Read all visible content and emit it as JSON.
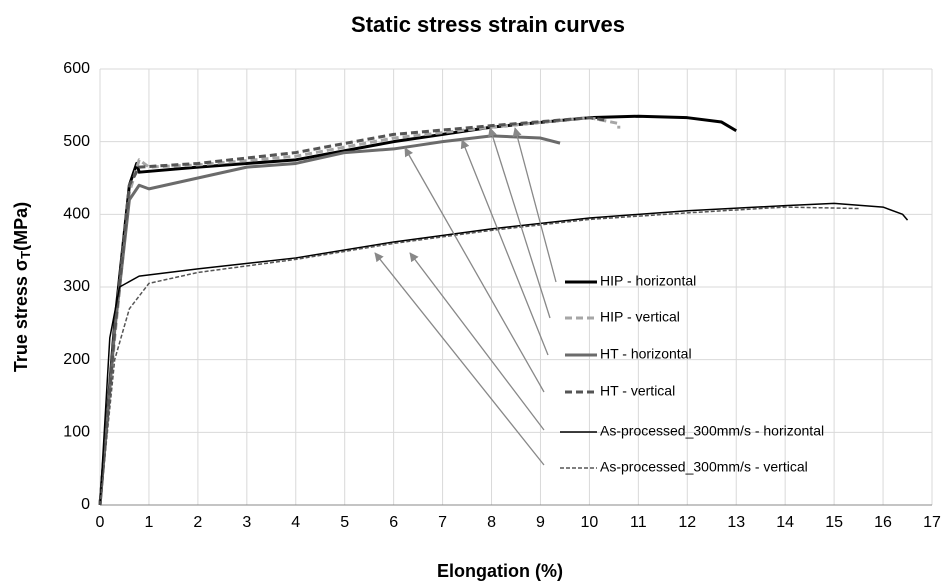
{
  "chart_data": {
    "type": "line",
    "title": "Static stress strain curves",
    "x_label": "Elongation (%)",
    "y_label": {
      "text": "True stress  σ",
      "subscript": "T",
      "unit": "(MPa)"
    },
    "xlim": [
      0,
      17
    ],
    "xticks": [
      0,
      1,
      2,
      3,
      4,
      5,
      6,
      7,
      8,
      9,
      10,
      11,
      12,
      13,
      14,
      15,
      16,
      17
    ],
    "ylim": [
      0,
      600
    ],
    "yticks": [
      0,
      100,
      200,
      300,
      400,
      500,
      600
    ],
    "grid": true,
    "legend": "right",
    "series": [
      {
        "name": "HIP - horizontal",
        "color": "#000000",
        "style": "solid",
        "weight": "thick",
        "x": [
          0,
          0.3,
          0.6,
          0.75,
          0.8,
          2,
          4,
          6,
          8,
          10,
          11,
          12,
          12.7,
          13
        ],
        "values": [
          0,
          250,
          440,
          470,
          458,
          465,
          475,
          500,
          520,
          533,
          535,
          533,
          527,
          515
        ]
      },
      {
        "name": "HIP - vertical",
        "color": "#a6a6a6",
        "style": "dashed",
        "weight": "thick",
        "x": [
          0,
          0.3,
          0.6,
          0.8,
          1,
          2,
          4,
          6,
          8,
          10,
          10.6,
          10.6
        ],
        "values": [
          0,
          230,
          430,
          475,
          465,
          468,
          480,
          505,
          520,
          533,
          525,
          518
        ]
      },
      {
        "name": "HT - horizontal",
        "color": "#6b6b6b",
        "style": "solid",
        "weight": "thick",
        "x": [
          0,
          0.3,
          0.6,
          0.8,
          1,
          2,
          3,
          4,
          5,
          6,
          6.5,
          7,
          8,
          9,
          9.4
        ],
        "values": [
          0,
          240,
          420,
          440,
          435,
          450,
          465,
          470,
          485,
          490,
          495,
          500,
          508,
          505,
          498
        ]
      },
      {
        "name": "HT - vertical",
        "color": "#555555",
        "style": "dashed",
        "weight": "thick",
        "x": [
          0,
          0.3,
          0.6,
          0.8,
          2,
          4,
          6,
          8,
          10,
          10.3
        ],
        "values": [
          0,
          240,
          440,
          465,
          470,
          485,
          510,
          522,
          533,
          530
        ]
      },
      {
        "name": "As-processed_300mm/s - horizontal",
        "color": "#000000",
        "style": "solid",
        "weight": "thin",
        "x": [
          0,
          0.2,
          0.4,
          0.8,
          2,
          4,
          6,
          8,
          10,
          12,
          14,
          15,
          16,
          16.4,
          16.5
        ],
        "values": [
          0,
          230,
          300,
          315,
          325,
          340,
          362,
          380,
          395,
          405,
          412,
          415,
          410,
          400,
          392
        ]
      },
      {
        "name": "As-processed_300mm/s - vertical",
        "color": "#555555",
        "style": "dashed",
        "weight": "thin",
        "x": [
          0,
          0.3,
          0.6,
          1,
          2,
          4,
          6,
          8,
          10,
          12,
          14,
          15.5
        ],
        "values": [
          0,
          200,
          270,
          305,
          320,
          338,
          360,
          378,
          393,
          402,
          410,
          408
        ]
      }
    ]
  }
}
